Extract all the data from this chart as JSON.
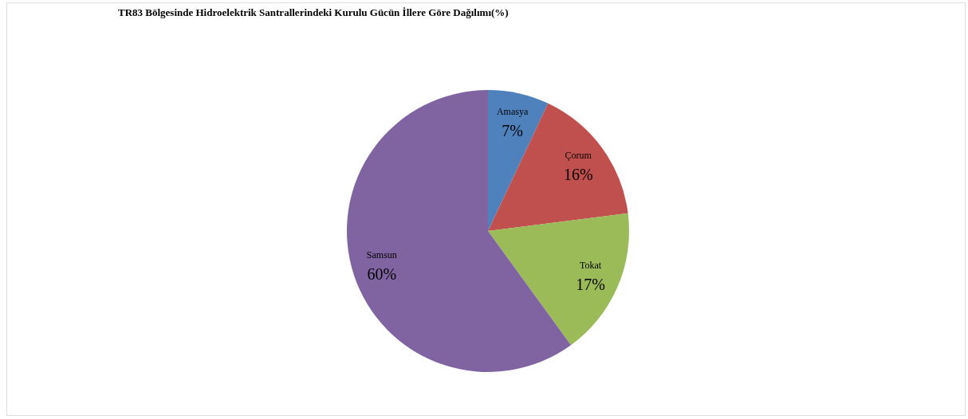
{
  "chart_data": {
    "type": "pie",
    "title": "TR83 Bölgesinde Hidroelektrik Santrallerindeki Kurulu Gücün İllere Göre Dağılımı(%)",
    "categories": [
      "Amasya",
      "Çorum",
      "Tokat",
      "Samsun"
    ],
    "values": [
      7,
      16,
      17,
      60
    ],
    "colors": [
      "#4f81bd",
      "#c0504d",
      "#9bbb59",
      "#8064a2"
    ],
    "value_labels": [
      "7%",
      "16%",
      "17%",
      "60%"
    ],
    "legend": false
  }
}
